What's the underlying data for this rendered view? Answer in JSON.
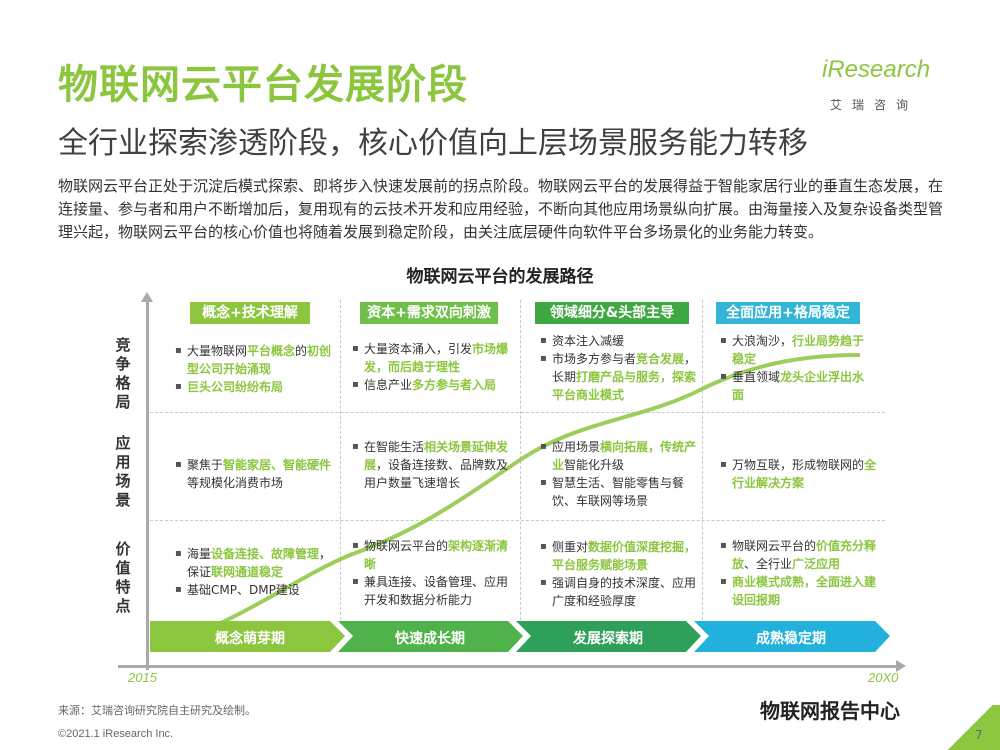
{
  "title": "物联网云平台发展阶段",
  "subtitle": "全行业探索渗透阶段，核心价值向上层场景服务能力转移",
  "logo": {
    "word": "iResearch",
    "cn": "艾瑞咨询"
  },
  "intro": "物联网云平台正处于沉淀后模式探索、即将步入快速发展前的拐点阶段。物联网云平台的发展得益于智能家居行业的垂直生态发展，在连接量、参与者和用户不断增加后，复用现有的云技术开发和应用经验，不断向其他应用场景纵向扩展。由海量接入及复杂设备类型管理兴起，物联网云平台的核心价值也将随着发展到稳定阶段，由关注底层硬件向软件平台多场景化的业务能力转变。",
  "chart_title": "物联网云平台的发展路径",
  "rows": [
    "竞争格局",
    "应用场景",
    "价值特点"
  ],
  "stages": [
    {
      "head": "概念+技术理解",
      "color": "#8cc63f"
    },
    {
      "head": "资本+需求双向刺激",
      "color": "#6fbf4a"
    },
    {
      "head": "领域细分&头部主导",
      "color": "#3fa843"
    },
    {
      "head": "全面应用+格局稳定",
      "color": "#33b5d8"
    }
  ],
  "phases": [
    {
      "label": "概念萌芽期",
      "color": "#8cc63f"
    },
    {
      "label": "快速成长期",
      "color": "#4fb24a"
    },
    {
      "label": "发展探索期",
      "color": "#2ea05a"
    },
    {
      "label": "成熟稳定期",
      "color": "#22b1dc"
    }
  ],
  "cells": {
    "c1r1a": "大量物联网",
    "c1r1b": "平台概念",
    "c1r1c": "的",
    "c1r1d": "初创型公司开始涌现",
    "c1r1e": "巨头公司纷纷布局",
    "c1r2a": "聚焦于",
    "c1r2b": "智能家居、智能硬件",
    "c1r2c": "等规模化消费市场",
    "c1r3a": "海量",
    "c1r3b": "设备连接、故障管理",
    "c1r3c": "，保证",
    "c1r3d": "联网通道稳定",
    "c1r3e": "基础CMP、DMP建设",
    "c2r1a": "大量资本涌入，引发",
    "c2r1b": "市场爆发，而后趋于理性",
    "c2r1c": "信息产业",
    "c2r1d": "多方参与者入局",
    "c2r2a": "在智能生活",
    "c2r2b": "相关场景延伸发展",
    "c2r2c": "，设备连接数、品牌数及用户数量飞速增长",
    "c2r3a": "物联网云平台的",
    "c2r3b": "架构逐渐清晰",
    "c2r3c": "兼具连接、设备管理、应用开发和数据分析能力",
    "c3r1a": "资本注入减缓",
    "c3r1b": "市场多方参与者",
    "c3r1c": "竞合发展",
    "c3r1d": "，长期",
    "c3r1e": "打磨产品与服务，探索平台商业模式",
    "c3r2a": "应用场景",
    "c3r2b": "横向拓展，传统产业",
    "c3r2c": "智能化升级",
    "c3r2d": "智慧生活、智能零售与餐饮、车联网等场景",
    "c3r3a": "侧重对",
    "c3r3b": "数据价值深度挖掘，平台服务赋能场景",
    "c3r3c": "强调自身的技术深度、应用广度和经验厚度",
    "c4r1a": "大浪淘沙，",
    "c4r1b": "行业局势趋于稳定",
    "c4r1c": "垂直领域",
    "c4r1d": "龙头企业浮出水面",
    "c4r2a": "万物互联，形成物联网的",
    "c4r2b": "全行业解决方案",
    "c4r3a": "物联网云平台的",
    "c4r3b": "价值充分释放",
    "c4r3c": "、全行业",
    "c4r3d": "广泛应用",
    "c4r3e": "商业模式成熟，全面进入建设回报期"
  },
  "year_start": "2015",
  "year_end": "20X0",
  "source": "来源：艾瑞咨询研究院自主研究及绘制。",
  "copyright": "©2021.1 iResearch Inc.",
  "wechat": "物联网报告中心",
  "page": "7",
  "colors": {
    "brand": "#8cc63f",
    "curve": "#8cc63f"
  }
}
